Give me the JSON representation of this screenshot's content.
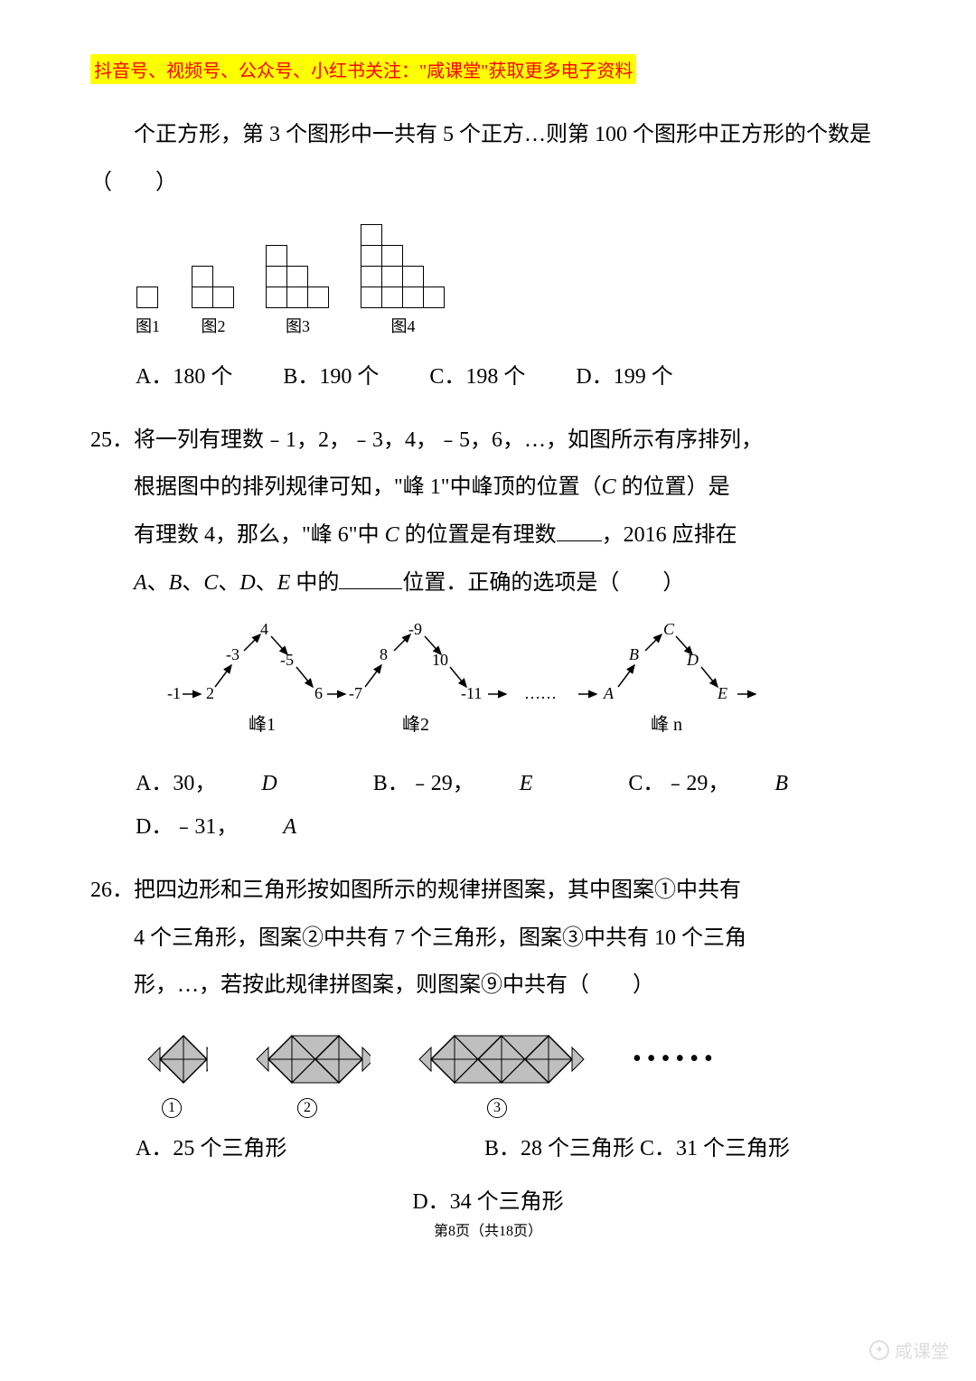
{
  "banner": "抖音号、视频号、公众号、小红书关注：\"咸课堂\"获取更多电子资料",
  "q24": {
    "cont": "个正方形，第 3 个图形中一共有 5 个正方…则第 100 个图形中正方形的个数是（　　）",
    "fig_labels": [
      "图1",
      "图2",
      "图3",
      "图4"
    ],
    "structures": [
      [
        1
      ],
      [
        2,
        1
      ],
      [
        3,
        2,
        1
      ],
      [
        4,
        3,
        2,
        1
      ]
    ],
    "options": {
      "A": "A．180 个",
      "B": "B．190 个",
      "C": "C．198 个",
      "D": "D．199 个"
    }
  },
  "q25": {
    "num": "25．",
    "line1": "将一列有理数﹣1，2，﹣3，4，﹣5，6，…，如图所示有序排列，",
    "line2_a": "根据图中的排列规律可知，\"峰 1\"中峰顶的位置（",
    "line2_b": " 的位置）是",
    "line3_a": "有理数 4，那么，\"峰 6\"中 ",
    "line3_b": " 的位置是有理数",
    "line3_c": "，2016 应排在",
    "line4_b": " 中的",
    "line4_c": "位置．正确的选项是（　　）",
    "peak_labels": {
      "p1": "峰1",
      "p2": "峰2",
      "pn": "峰 n"
    },
    "peak_nums": {
      "start": "-1",
      "a2": "2",
      "a3": "-3",
      "a4": "4",
      "a5": "-5",
      "a6": "6",
      "a7": "-7",
      "a8": "8",
      "a9": "-9",
      "a10": "10",
      "a11": "-11"
    },
    "dots": "……",
    "arrow_to": "→",
    "letters": {
      "A": "A",
      "B": "B",
      "C": "C",
      "D": "D",
      "E": "E"
    },
    "options": {
      "A": "A．30，",
      "AD": "D",
      "B": "B．﹣29，",
      "BE": "E",
      "C": "C．﹣29，",
      "CB": "B",
      "D": "D．﹣31，",
      "DA": "A"
    }
  },
  "q26": {
    "num": "26．",
    "line1": "把四边形和三角形按如图所示的规律拼图案，其中图案①中共有",
    "line2": "4 个三角形，图案②中共有 7 个三角形，图案③中共有 10 个三角",
    "line3": "形，…，若按此规律拼图案，则图案⑨中共有（　　）",
    "circ": {
      "c1": "1",
      "c2": "2",
      "c3": "3"
    },
    "options": {
      "A": "A．25 个三角形",
      "B": "B．28 个三角形",
      "C": "C．31 个三角形",
      "D": "D．34 个三角形"
    },
    "dots": "••••••"
  },
  "footer": {
    "page": "第8页（共18页）"
  },
  "watermark": "咸课堂",
  "colors": {
    "diamond_fill": "#bfbfbf",
    "diamond_stroke": "#000000"
  }
}
